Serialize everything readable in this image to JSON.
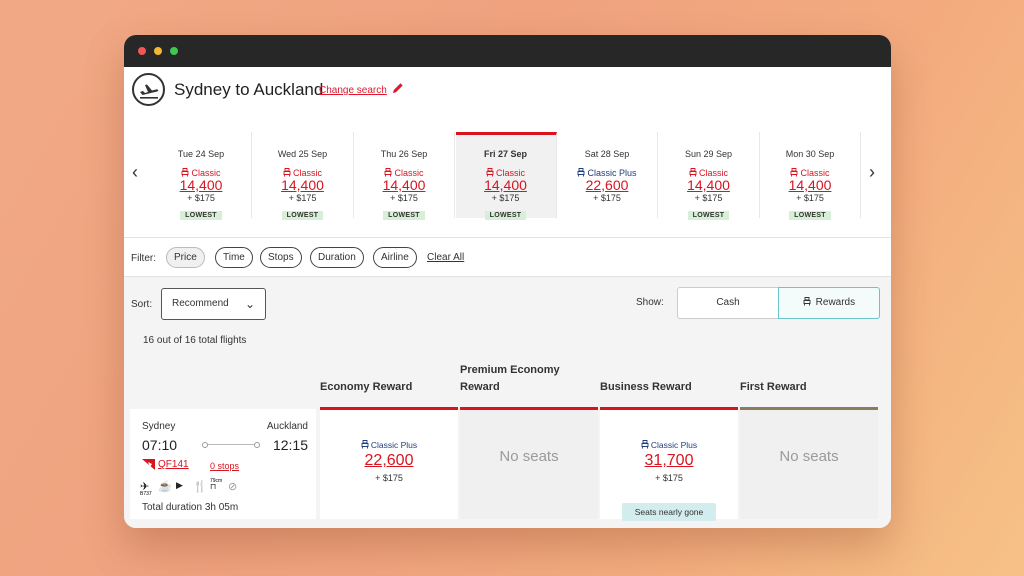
{
  "header": {
    "title": "Sydney to Auckland",
    "change_search": "Change search",
    "icons": [
      "plane-departure-icon",
      "pencil-icon"
    ]
  },
  "dates": [
    {
      "day": "Tue 24 Sep",
      "fare_class": "Classic",
      "points": "14,400",
      "tax": "+ $175",
      "badge": "LOWEST",
      "selected": false
    },
    {
      "day": "Wed 25 Sep",
      "fare_class": "Classic",
      "points": "14,400",
      "tax": "+ $175",
      "badge": "LOWEST",
      "selected": false
    },
    {
      "day": "Thu 26 Sep",
      "fare_class": "Classic",
      "points": "14,400",
      "tax": "+ $175",
      "badge": "LOWEST",
      "selected": false
    },
    {
      "day": "Fri 27 Sep",
      "fare_class": "Classic",
      "points": "14,400",
      "tax": "+ $175",
      "badge": "LOWEST",
      "selected": true
    },
    {
      "day": "Sat 28 Sep",
      "fare_class": "Classic Plus",
      "points": "22,600",
      "tax": "+ $175",
      "badge": "",
      "selected": false
    },
    {
      "day": "Sun 29 Sep",
      "fare_class": "Classic",
      "points": "14,400",
      "tax": "+ $175",
      "badge": "LOWEST",
      "selected": false
    },
    {
      "day": "Mon 30 Sep",
      "fare_class": "Classic",
      "points": "14,400",
      "tax": "+ $175",
      "badge": "LOWEST",
      "selected": false
    }
  ],
  "colors": {
    "accent_red": "#d8141f",
    "classic_plus_blue": "#1f3d7a",
    "rewards_outline": "#6bc6c9",
    "lowest_badge": "#d7efd7"
  },
  "filter": {
    "label": "Filter:",
    "chips": [
      "Price",
      "Time",
      "Stops",
      "Duration",
      "Airline"
    ],
    "active_chip": "Price",
    "clear_all": "Clear All"
  },
  "sort": {
    "label": "Sort:",
    "value": "Recommend"
  },
  "show": {
    "label": "Show:",
    "cash": "Cash",
    "rewards": "Rewards",
    "selected": "Rewards"
  },
  "results_count": "16 out of 16 total flights",
  "cabins": [
    "Economy Reward",
    "Premium Economy Reward",
    "Business Reward",
    "First Reward"
  ],
  "flight": {
    "from_city": "Sydney",
    "to_city": "Auckland",
    "depart_time": "07:10",
    "arrive_time": "12:15",
    "flight_number": "QF141",
    "stops": "0 stops",
    "aircraft": "B737",
    "amenities": [
      "aircraft-icon",
      "coffee-icon",
      "entertainment-icon",
      "meal-icon",
      "legroom-icon",
      "no-wifi-icon"
    ],
    "legroom_label": "79cm",
    "duration": "Total duration 3h 05m",
    "fares": {
      "economy": {
        "fare_class": "Classic Plus",
        "points": "22,600",
        "tax": "+ $175"
      },
      "premium": {
        "status": "No seats"
      },
      "business": {
        "fare_class": "Classic Plus",
        "points": "31,700",
        "tax": "+ $175",
        "note": "Seats nearly gone"
      },
      "first": {
        "status": "No seats"
      }
    }
  }
}
